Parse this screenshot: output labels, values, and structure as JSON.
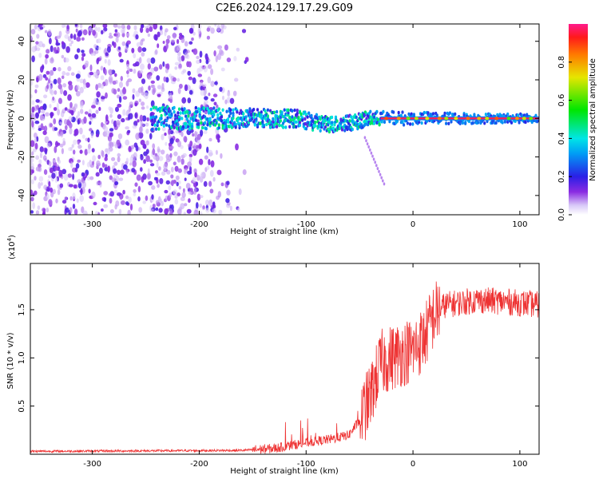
{
  "title": "C2E6.2024.129.17.29.G09",
  "chart_data": [
    {
      "type": "heatmap",
      "name": "spectrogram",
      "xlabel": "Height of straight line (km)",
      "ylabel": "Frequency (Hz)",
      "xlim": [
        -358,
        118
      ],
      "ylim": [
        -50,
        49
      ],
      "xticks": [
        -300,
        -200,
        -100,
        0,
        100
      ],
      "yticks": [
        40,
        20,
        0,
        -20,
        -40
      ],
      "colorbar": {
        "label": "Normalized spectral amplitude",
        "range": [
          0.0,
          1.0
        ],
        "ticks": [
          "0.0",
          "0.2",
          "0.4",
          "0.6",
          "0.8"
        ],
        "tick_values": [
          0.0,
          0.2,
          0.4,
          0.6,
          0.8
        ]
      },
      "features": {
        "noise_region_x": [
          -358,
          -160
        ],
        "band_start_x": -245,
        "band_center_hz": 0,
        "band_halfwidth_hz": [
          6,
          2
        ],
        "strong_line_start_x": -30
      }
    },
    {
      "type": "line",
      "name": "snr",
      "xlabel": "Height of straight line (km)",
      "ylabel": "SNR (10 * v/v)",
      "scale_label": "(x10",
      "scale_exp": "4",
      "scale_close": ")",
      "xlim": [
        -358,
        118
      ],
      "ylim": [
        0,
        1.98
      ],
      "xticks": [
        -300,
        -200,
        -100,
        0,
        100
      ],
      "yticks": [
        0.5,
        1.0,
        1.5
      ],
      "ytick_labels": [
        "0.5",
        "1.0",
        "1.5"
      ],
      "color": "#ee3333",
      "trend": [
        [
          -358,
          0.03
        ],
        [
          -160,
          0.04
        ],
        [
          -130,
          0.06
        ],
        [
          -100,
          0.12
        ],
        [
          -75,
          0.16
        ],
        [
          -60,
          0.2
        ],
        [
          -50,
          0.35
        ],
        [
          -40,
          0.6
        ],
        [
          -30,
          0.95
        ],
        [
          -20,
          1.0
        ],
        [
          -10,
          1.05
        ],
        [
          0,
          1.08
        ],
        [
          10,
          1.2
        ],
        [
          20,
          1.45
        ],
        [
          30,
          1.55
        ],
        [
          60,
          1.6
        ],
        [
          90,
          1.58
        ],
        [
          118,
          1.55
        ]
      ]
    }
  ]
}
